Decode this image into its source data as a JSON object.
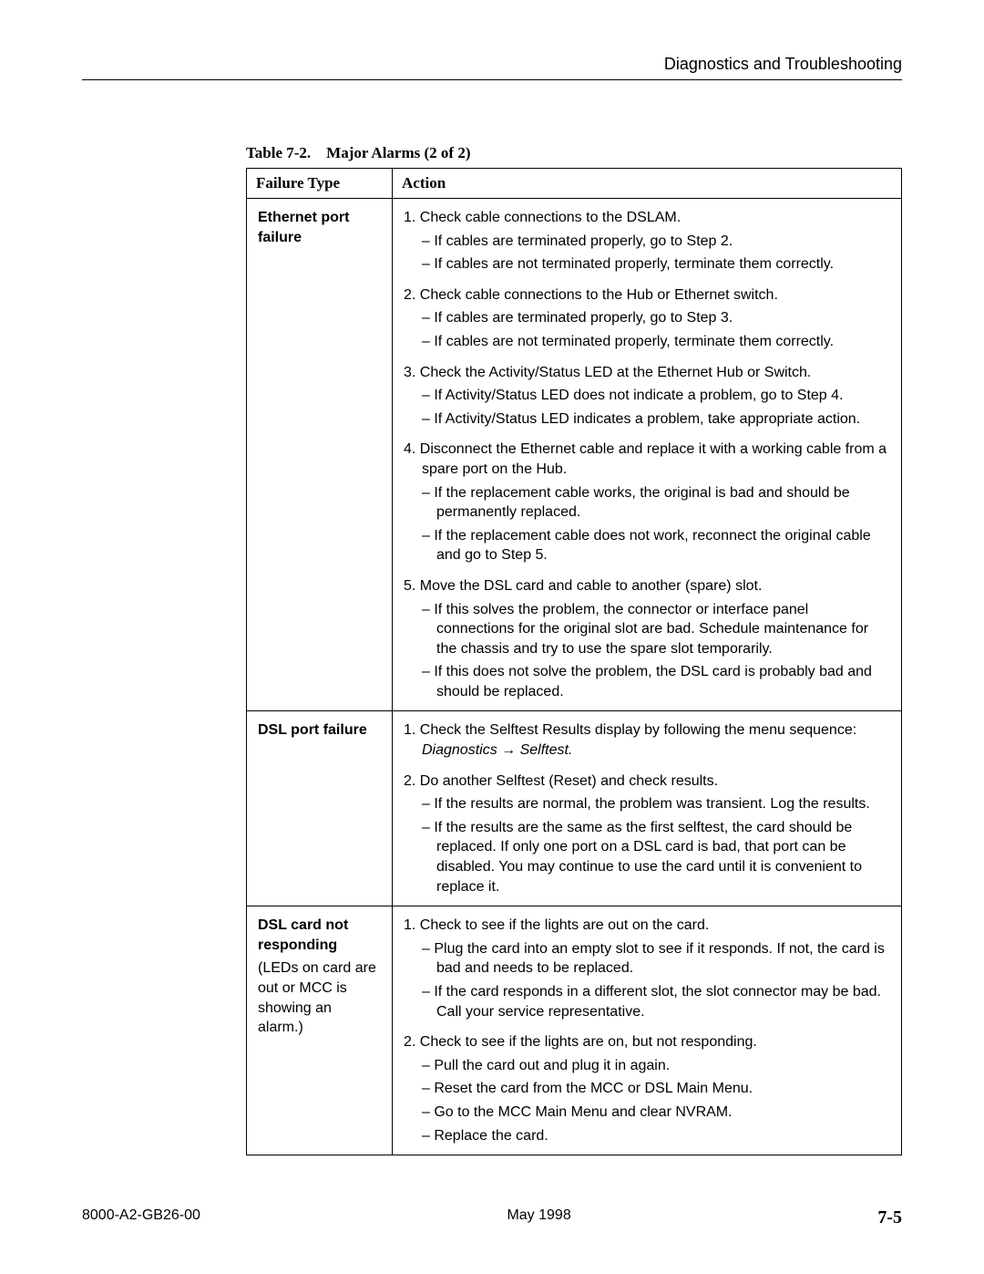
{
  "header": {
    "title": "Diagnostics and Troubleshooting"
  },
  "caption": {
    "label": "Table 7-2.",
    "title": "Major Alarms (2 of 2)"
  },
  "columns": {
    "failure_type": "Failure Type",
    "action": "Action"
  },
  "rows": [
    {
      "ft_title": "Ethernet port failure",
      "ft_note": "",
      "steps": [
        {
          "num": "1.",
          "text": "Check cable connections to the DSLAM.",
          "subs": [
            "If cables are terminated properly, go to Step 2.",
            "If cables are not terminated properly, terminate them correctly."
          ]
        },
        {
          "num": "2.",
          "text": "Check cable connections to the Hub or Ethernet switch.",
          "subs": [
            "If cables are terminated properly, go to Step 3.",
            "If cables are not terminated properly, terminate them correctly."
          ]
        },
        {
          "num": "3.",
          "text": "Check the Activity/Status LED at the Ethernet Hub or Switch.",
          "subs": [
            "If Activity/Status LED does not indicate a problem, go to Step 4.",
            "If Activity/Status LED indicates a problem, take appropriate action."
          ]
        },
        {
          "num": "4.",
          "text": "Disconnect the Ethernet cable and replace it with a working cable from a spare port on the Hub.",
          "subs": [
            "If the replacement cable works, the original is bad and should be permanently replaced.",
            "If the replacement cable does not work, reconnect the original cable and go to Step 5."
          ]
        },
        {
          "num": "5.",
          "text": "Move the DSL card and cable to another (spare) slot.",
          "subs": [
            "If this solves the problem, the connector or interface panel connections for the original slot are bad. Schedule maintenance for the chassis and try to use the spare slot temporarily.",
            "If this does not solve the problem, the DSL card is probably bad and should be replaced."
          ]
        }
      ]
    },
    {
      "ft_title": "DSL port failure",
      "ft_note": "",
      "steps": [
        {
          "num": "1.",
          "text": "Check the Selftest Results display by following the menu sequence:",
          "italic_tail": "Diagnostics → Selftest.",
          "subs": []
        },
        {
          "num": "2.",
          "text": "Do another Selftest (Reset) and check results.",
          "subs": [
            "If the results are normal, the problem was transient. Log the results.",
            "If the results are the same as the first selftest, the card should be replaced. If only one port on a DSL card is bad, that port can be disabled. You may continue to use the card until it is convenient to replace it."
          ]
        }
      ]
    },
    {
      "ft_title": "DSL card not responding",
      "ft_note": "(LEDs on card are out or MCC is showing an alarm.)",
      "steps": [
        {
          "num": "1.",
          "text": "Check to see if the lights are out on the card.",
          "subs": [
            "Plug the card into an empty slot to see if it responds. If not, the card is bad and needs to be replaced.",
            "If the card responds in a different slot, the slot connector may be bad. Call your service representative."
          ]
        },
        {
          "num": "2.",
          "text": "Check to see if the lights are on, but not responding.",
          "subs": [
            "Pull the card out and plug it in again.",
            "Reset the card from the MCC or DSL Main Menu.",
            "Go to the MCC Main Menu and clear NVRAM.",
            "Replace the card."
          ]
        }
      ]
    }
  ],
  "footer": {
    "doc_id": "8000-A2-GB26-00",
    "date": "May 1998",
    "page": "7-5"
  }
}
